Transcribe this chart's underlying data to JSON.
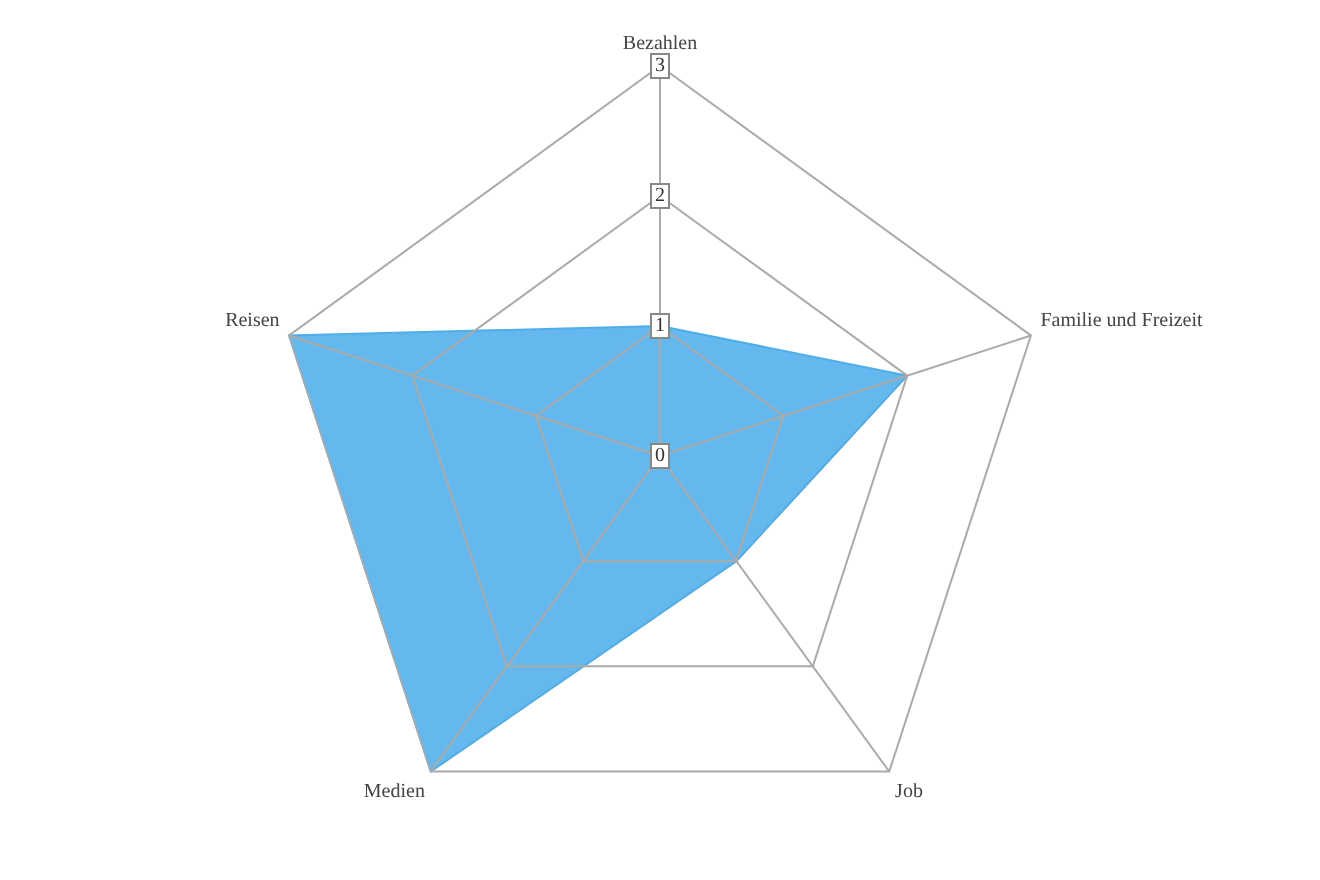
{
  "chart_data": {
    "type": "radar",
    "categories": [
      "Bezahlen",
      "Familie und Freizeit",
      "Job",
      "Medien",
      "Reisen"
    ],
    "series": [
      {
        "color": "#4eaeea",
        "values": [
          1,
          2,
          1,
          3,
          3
        ]
      }
    ],
    "ylim": [
      0,
      3
    ],
    "yticks": [
      0,
      1,
      2,
      3
    ],
    "grid": true,
    "legend": false,
    "marker": "none"
  }
}
